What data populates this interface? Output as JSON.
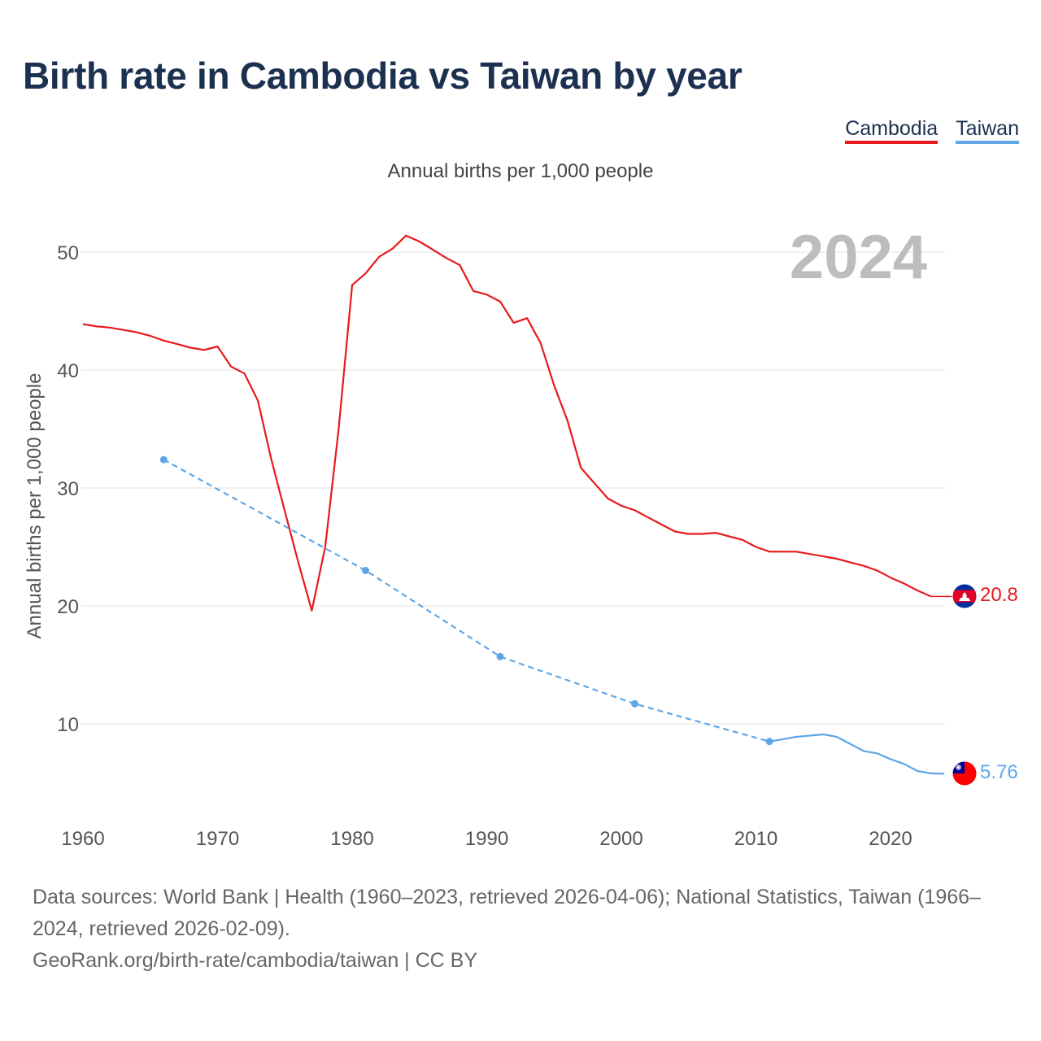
{
  "title": "Birth rate in Cambodia vs Taiwan by year",
  "legend": {
    "cambodia": "Cambodia",
    "taiwan": "Taiwan"
  },
  "subtitle": "Annual births per 1,000 people",
  "year_badge": "2024",
  "footer": {
    "sources": "Data sources: World Bank | Health (1960–2023, retrieved 2026-04-06); National Statistics, Taiwan (1966–2024, retrieved 2026-02-09).",
    "credit": "GeoRank.org/birth-rate/cambodia/taiwan | CC BY"
  },
  "colors": {
    "cambodia": "#e8191c",
    "taiwan": "#5fa6e6",
    "grid": "#e6e6e6",
    "axis_text": "#555555",
    "badge": "#bdbdbd"
  },
  "chart_data": {
    "type": "line",
    "title": "Birth rate in Cambodia vs Taiwan by year",
    "xlabel": "",
    "ylabel": "Annual births per 1,000 people",
    "xlim": [
      1960,
      2024
    ],
    "ylim": [
      3,
      55
    ],
    "xticks": [
      1960,
      1970,
      1980,
      1990,
      2000,
      2010,
      2020
    ],
    "yticks": [
      10,
      20,
      30,
      40,
      50
    ],
    "series": [
      {
        "name": "Cambodia",
        "color": "#e8191c",
        "end_label": "20.8",
        "dashed_segments": [],
        "points": [
          [
            1960,
            43.9
          ],
          [
            1961,
            43.7
          ],
          [
            1962,
            43.6
          ],
          [
            1963,
            43.4
          ],
          [
            1964,
            43.2
          ],
          [
            1965,
            42.9
          ],
          [
            1966,
            42.5
          ],
          [
            1967,
            42.2
          ],
          [
            1968,
            41.9
          ],
          [
            1969,
            41.7
          ],
          [
            1970,
            42.0
          ],
          [
            1971,
            40.3
          ],
          [
            1972,
            39.7
          ],
          [
            1973,
            37.4
          ],
          [
            1974,
            32.4
          ],
          [
            1975,
            28.0
          ],
          [
            1976,
            23.7
          ],
          [
            1977,
            19.6
          ],
          [
            1978,
            25.0
          ],
          [
            1979,
            35.0
          ],
          [
            1980,
            47.2
          ],
          [
            1981,
            48.2
          ],
          [
            1982,
            49.6
          ],
          [
            1983,
            50.3
          ],
          [
            1984,
            51.4
          ],
          [
            1985,
            50.9
          ],
          [
            1986,
            50.2
          ],
          [
            1987,
            49.5
          ],
          [
            1988,
            48.9
          ],
          [
            1989,
            46.7
          ],
          [
            1990,
            46.4
          ],
          [
            1991,
            45.8
          ],
          [
            1992,
            44.0
          ],
          [
            1993,
            44.4
          ],
          [
            1994,
            42.3
          ],
          [
            1995,
            38.7
          ],
          [
            1996,
            35.7
          ],
          [
            1997,
            31.7
          ],
          [
            1998,
            30.4
          ],
          [
            1999,
            29.1
          ],
          [
            2000,
            28.5
          ],
          [
            2001,
            28.1
          ],
          [
            2002,
            27.5
          ],
          [
            2003,
            26.9
          ],
          [
            2004,
            26.3
          ],
          [
            2005,
            26.1
          ],
          [
            2006,
            26.1
          ],
          [
            2007,
            26.2
          ],
          [
            2008,
            25.9
          ],
          [
            2009,
            25.6
          ],
          [
            2010,
            25.0
          ],
          [
            2011,
            24.6
          ],
          [
            2012,
            24.6
          ],
          [
            2013,
            24.6
          ],
          [
            2014,
            24.4
          ],
          [
            2015,
            24.2
          ],
          [
            2016,
            24.0
          ],
          [
            2017,
            23.7
          ],
          [
            2018,
            23.4
          ],
          [
            2019,
            23.0
          ],
          [
            2020,
            22.4
          ],
          [
            2021,
            21.9
          ],
          [
            2022,
            21.3
          ],
          [
            2023,
            20.8
          ],
          [
            2024,
            20.8
          ]
        ]
      },
      {
        "name": "Taiwan",
        "color": "#5fa6e6",
        "end_label": "5.76",
        "dashed_until": 2011,
        "markers": [
          1966,
          1981,
          1991,
          2001,
          2011
        ],
        "points": [
          [
            1966,
            32.4
          ],
          [
            1981,
            23.0
          ],
          [
            1991,
            15.7
          ],
          [
            2001,
            11.7
          ],
          [
            2011,
            8.5
          ],
          [
            2012,
            8.7
          ],
          [
            2013,
            8.9
          ],
          [
            2014,
            9.0
          ],
          [
            2015,
            9.1
          ],
          [
            2016,
            8.9
          ],
          [
            2017,
            8.3
          ],
          [
            2018,
            7.7
          ],
          [
            2019,
            7.5
          ],
          [
            2020,
            7.0
          ],
          [
            2021,
            6.6
          ],
          [
            2022,
            6.0
          ],
          [
            2023,
            5.8
          ],
          [
            2024,
            5.76
          ]
        ]
      }
    ]
  }
}
